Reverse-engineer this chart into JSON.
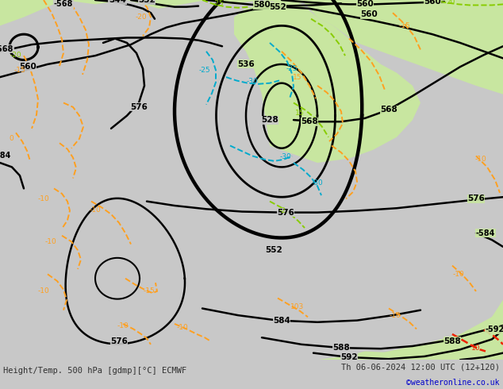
{
  "title_left": "Height/Temp. 500 hPa [gdmp][°C] ECMWF",
  "title_right": "Th 06-06-2024 12:00 UTC (12+120)",
  "credit": "©weatheronline.co.uk",
  "bg_green": "#c8e6a0",
  "bg_gray": "#c8c8c8",
  "c_black": "#000000",
  "c_orange": "#ffa020",
  "c_cyan": "#00aacc",
  "c_lime": "#88cc00",
  "c_red": "#ee2200",
  "figsize": [
    6.34,
    4.9
  ],
  "dpi": 100
}
